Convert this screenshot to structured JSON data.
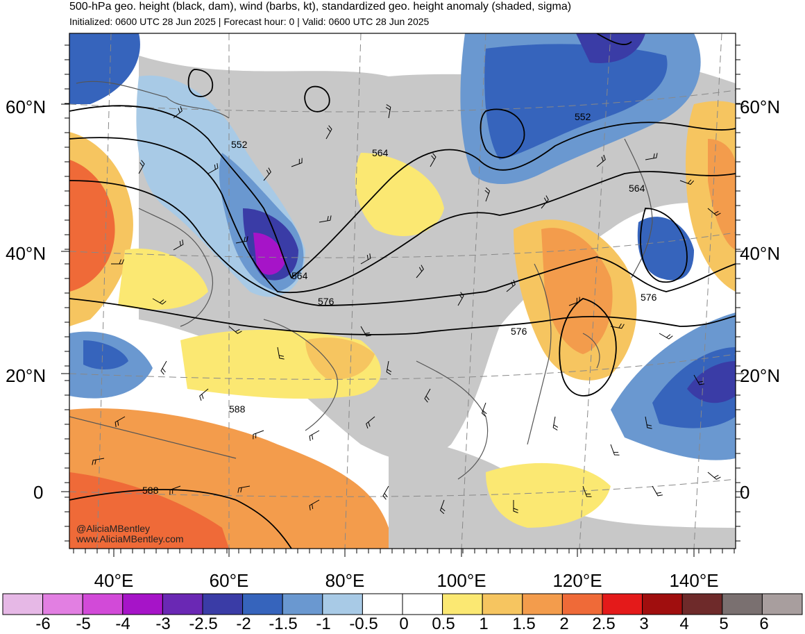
{
  "header": {
    "title": "500-hPa geo. height (black, dam), wind (barbs, kt), standardized geo. height anomaly (shaded, sigma)",
    "subtitle": "Initialized: 0600 UTC 28 Jun 2025 | Forecast hour: 0 | Valid: 0600 UTC 28 Jun 2025"
  },
  "axes": {
    "lat_labels": [
      "60°N",
      "40°N",
      "20°N",
      "0"
    ],
    "lon_labels": [
      "40°E",
      "60°E",
      "80°E",
      "100°E",
      "120°E",
      "140°E"
    ]
  },
  "contour_labels": [
    "552",
    "552",
    "564",
    "564",
    "564",
    "576",
    "576",
    "576",
    "588",
    "588"
  ],
  "credit": {
    "line1": "@AliciaMBentley",
    "line2": "www.AliciaMBentley.com"
  },
  "colorbar": {
    "labels": [
      "-6",
      "-5",
      "-4",
      "-3",
      "-2.5",
      "-2",
      "-1.5",
      "-1",
      "-0.5",
      "0",
      "0.5",
      "1",
      "1.5",
      "2",
      "2.5",
      "3",
      "4",
      "5",
      "6"
    ],
    "colors": [
      "#e6b8e6",
      "#e27fe2",
      "#d24ad8",
      "#a614c8",
      "#6a28b4",
      "#3a3ca6",
      "#3664bc",
      "#6a98d0",
      "#a8cae6",
      "#ffffff",
      "#ffffff",
      "#fbe872",
      "#f6c560",
      "#f39c4c",
      "#ef6a38",
      "#e41a1a",
      "#a00e0e",
      "#6e2a2a",
      "#7a7070",
      "#a89e9e"
    ]
  },
  "legend_palette": {
    "land_neutral": "#c8c8c8",
    "coastline": "#555555",
    "contour": "#000000"
  }
}
